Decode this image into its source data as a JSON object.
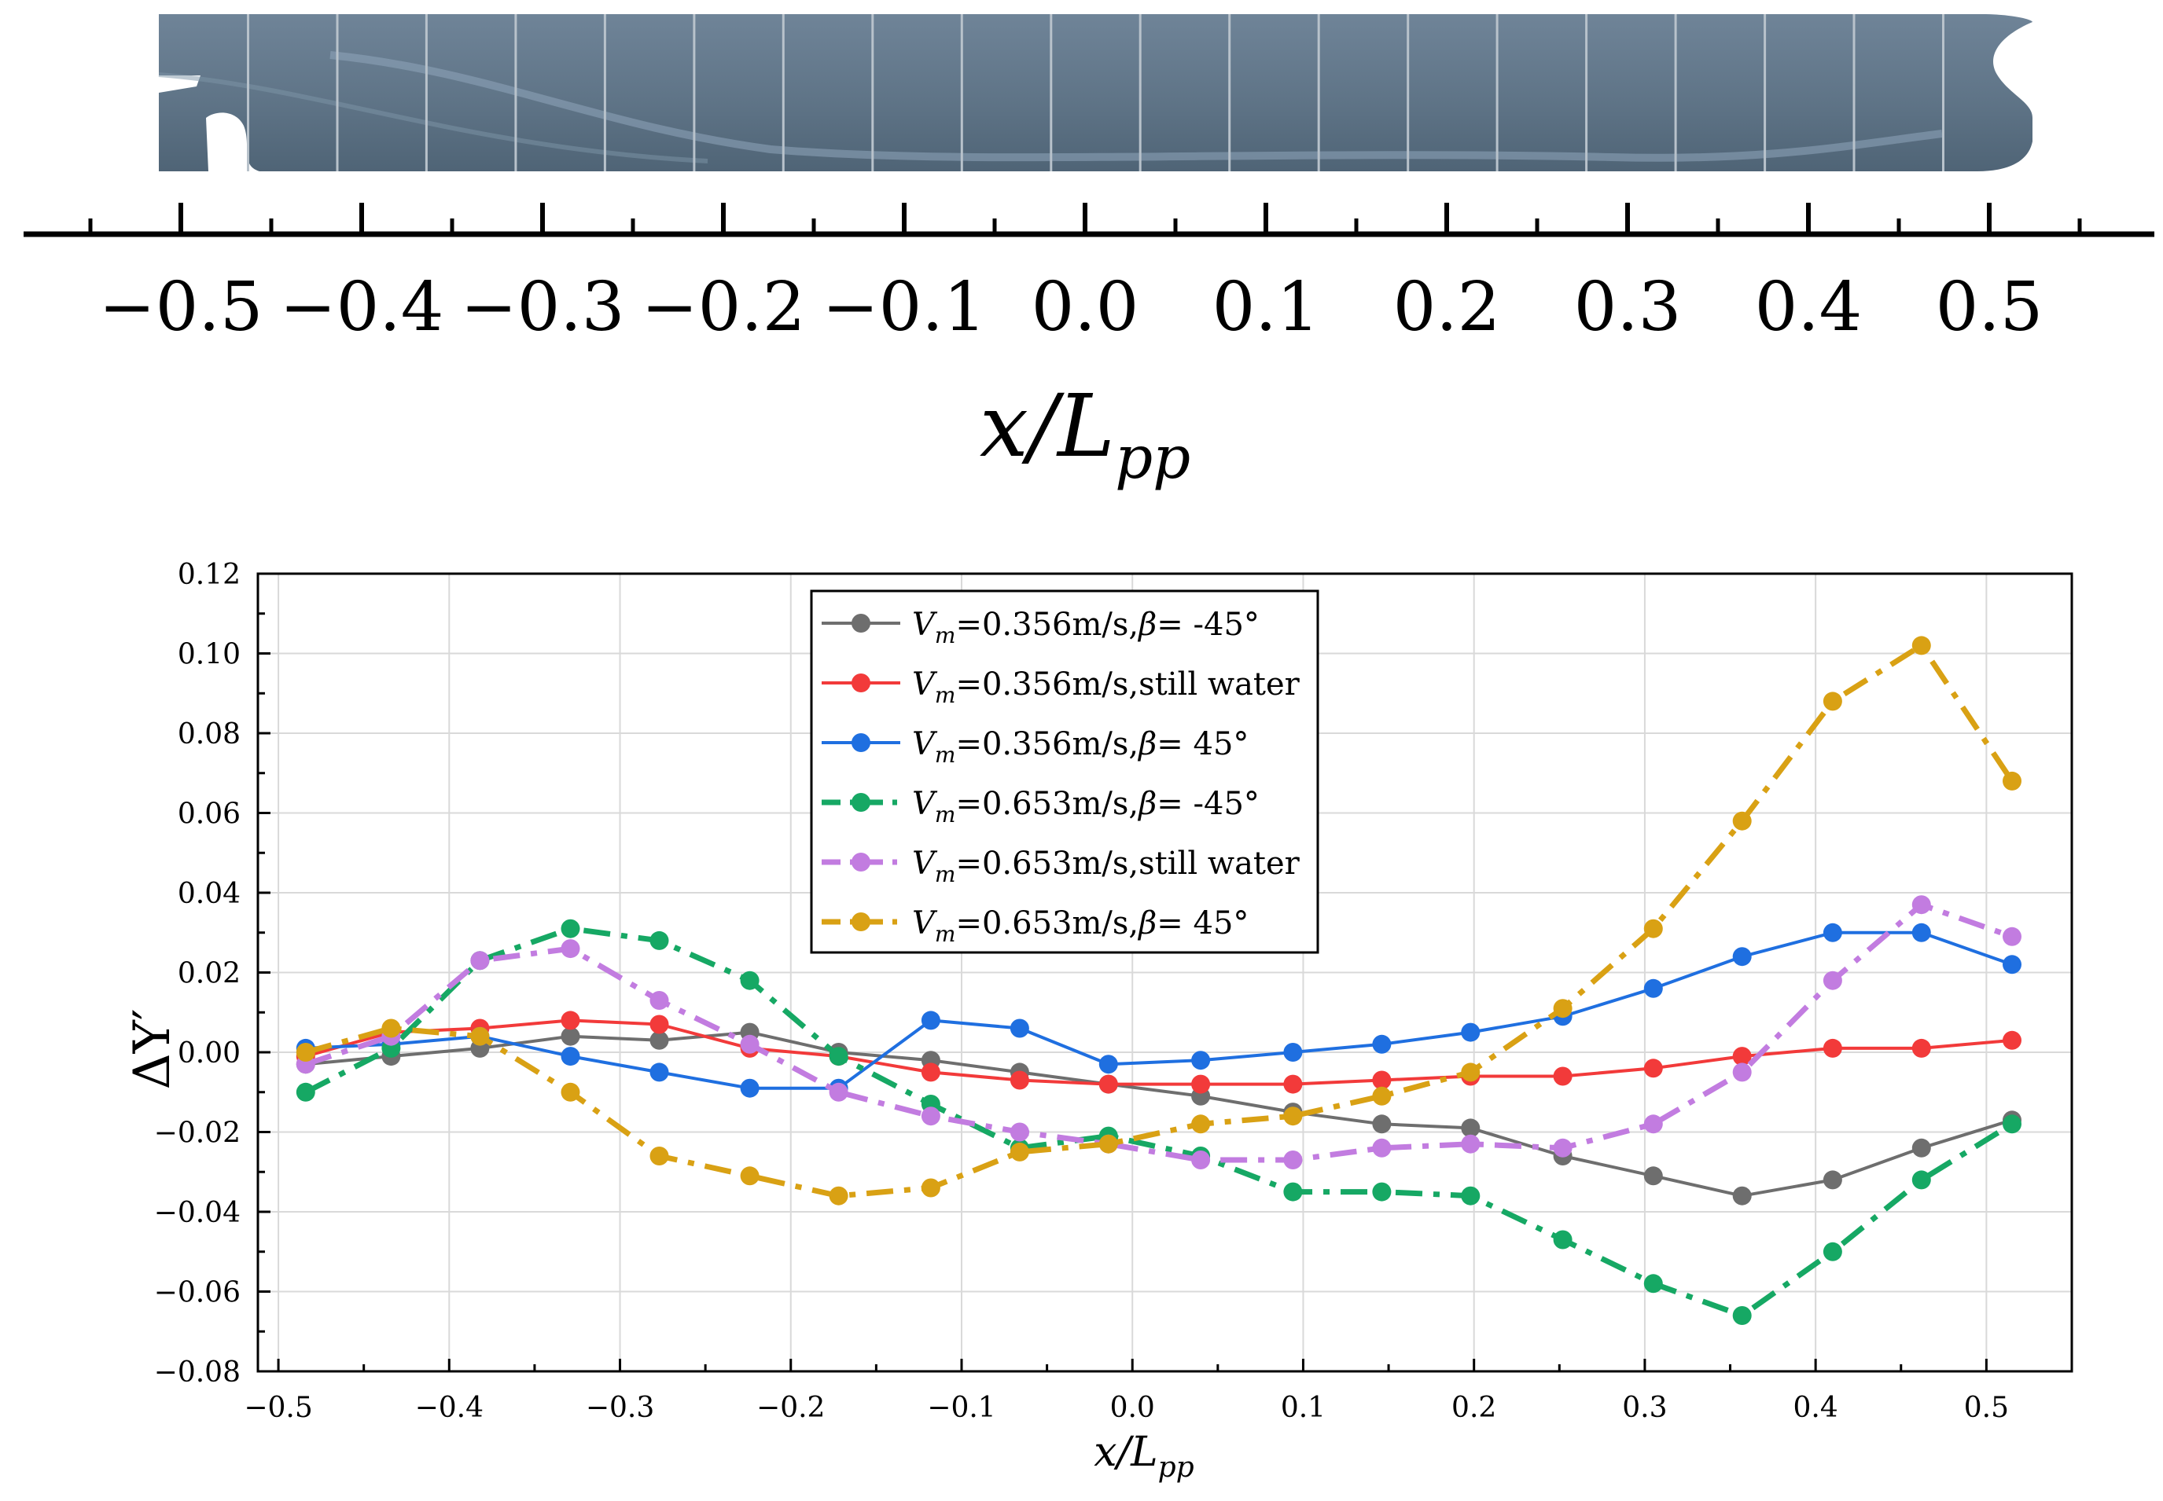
{
  "ship_scale": {
    "ticks": [
      "−0.5",
      "−0.4",
      "−0.3",
      "−0.2",
      "−0.1",
      "0.0",
      "0.1",
      "0.2",
      "0.3",
      "0.4",
      "0.5"
    ],
    "tick_values": [
      -0.5,
      -0.4,
      -0.3,
      -0.2,
      -0.1,
      0.0,
      0.1,
      0.2,
      0.3,
      0.4,
      0.5
    ],
    "xlabel_main": "x/L",
    "xlabel_sub": "pp"
  },
  "chart_data": {
    "type": "line",
    "title": "",
    "xlabel": "x/L",
    "xlabel_sub": "pp",
    "ylabel": "ΔY′",
    "xlim": [
      -0.512,
      0.55
    ],
    "ylim": [
      -0.08,
      0.12
    ],
    "xticks": [
      -0.5,
      -0.4,
      -0.3,
      -0.2,
      -0.1,
      0.0,
      0.1,
      0.2,
      0.3,
      0.4,
      0.5
    ],
    "xtick_labels": [
      "−0.5",
      "−0.4",
      "−0.3",
      "−0.2",
      "−0.1",
      "0.0",
      "0.1",
      "0.2",
      "0.3",
      "0.4",
      "0.5"
    ],
    "yticks": [
      -0.08,
      -0.06,
      -0.04,
      -0.02,
      0.0,
      0.02,
      0.04,
      0.06,
      0.08,
      0.1,
      0.12
    ],
    "ytick_labels": [
      "−0.08",
      "−0.06",
      "−0.04",
      "−0.02",
      "0.00",
      "0.02",
      "0.04",
      "0.06",
      "0.08",
      "0.10",
      "0.12"
    ],
    "grid": true,
    "legend_position": "top-center",
    "x": [
      -0.484,
      -0.434,
      -0.382,
      -0.329,
      -0.277,
      -0.224,
      -0.172,
      -0.118,
      -0.066,
      -0.014,
      0.04,
      0.094,
      0.146,
      0.198,
      0.252,
      0.305,
      0.357,
      0.41,
      0.462,
      0.515
    ],
    "series": [
      {
        "name_main": "V",
        "name_sub": "m",
        "name_rest": "=0.356m/s,",
        "name_beta": "β",
        "name_end": "= -45°",
        "color": "#6e6e6e",
        "dash": "solid",
        "values": [
          -0.003,
          -0.001,
          0.001,
          0.004,
          0.003,
          0.005,
          0.0,
          -0.002,
          -0.005,
          -0.008,
          -0.011,
          -0.015,
          -0.018,
          -0.019,
          -0.026,
          -0.031,
          -0.036,
          -0.032,
          -0.024,
          -0.017
        ]
      },
      {
        "name_main": "V",
        "name_sub": "m",
        "name_rest": "=0.356m/s,still water",
        "name_beta": "",
        "name_end": "",
        "color": "#f23a3a",
        "dash": "solid",
        "values": [
          -0.001,
          0.005,
          0.006,
          0.008,
          0.007,
          0.001,
          -0.001,
          -0.005,
          -0.007,
          -0.008,
          -0.008,
          -0.008,
          -0.007,
          -0.006,
          -0.006,
          -0.004,
          -0.001,
          0.001,
          0.001,
          0.003
        ]
      },
      {
        "name_main": "V",
        "name_sub": "m",
        "name_rest": "=0.356m/s,",
        "name_beta": "β",
        "name_end": "= 45°",
        "color": "#1f6fe0",
        "dash": "solid",
        "values": [
          0.001,
          0.002,
          0.004,
          -0.001,
          -0.005,
          -0.009,
          -0.009,
          0.008,
          0.006,
          -0.003,
          -0.002,
          0.0,
          0.002,
          0.005,
          0.009,
          0.016,
          0.024,
          0.03,
          0.03,
          0.022
        ]
      },
      {
        "name_main": "V",
        "name_sub": "m",
        "name_rest": "=0.653m/s,",
        "name_beta": "β",
        "name_end": "= -45°",
        "color": "#16a864",
        "dash": "dashdot",
        "values": [
          -0.01,
          0.001,
          0.023,
          0.031,
          0.028,
          0.018,
          -0.001,
          -0.013,
          -0.024,
          -0.021,
          -0.026,
          -0.035,
          -0.035,
          -0.036,
          -0.047,
          -0.058,
          -0.066,
          -0.05,
          -0.032,
          -0.018
        ]
      },
      {
        "name_main": "V",
        "name_sub": "m",
        "name_rest": "=0.653m/s,still water",
        "name_beta": "",
        "name_end": "",
        "color": "#c27ce0",
        "dash": "dashdot",
        "values": [
          -0.003,
          0.004,
          0.023,
          0.026,
          0.013,
          0.002,
          -0.01,
          -0.016,
          -0.02,
          -0.023,
          -0.027,
          -0.027,
          -0.024,
          -0.023,
          -0.024,
          -0.018,
          -0.005,
          0.018,
          0.037,
          0.029
        ]
      },
      {
        "name_main": "V",
        "name_sub": "m",
        "name_rest": "=0.653m/s,",
        "name_beta": "β",
        "name_end": "= 45°",
        "color": "#d9a114",
        "dash": "dashdot",
        "values": [
          0.0,
          0.006,
          0.004,
          -0.01,
          -0.026,
          -0.031,
          -0.036,
          -0.034,
          -0.025,
          -0.023,
          -0.018,
          -0.016,
          -0.011,
          -0.005,
          0.011,
          0.031,
          0.058,
          0.088,
          0.102,
          0.068
        ]
      }
    ]
  }
}
